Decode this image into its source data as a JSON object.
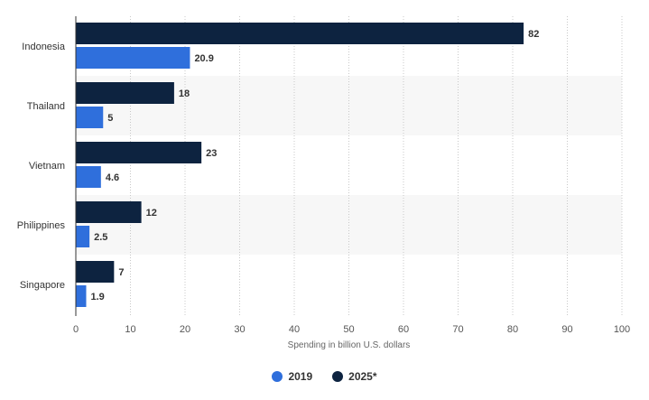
{
  "chart_data": {
    "type": "bar",
    "orientation": "horizontal",
    "categories": [
      "Indonesia",
      "Thailand",
      "Vietnam",
      "Philippines",
      "Singapore"
    ],
    "series": [
      {
        "name": "2025*",
        "color": "#0d2340",
        "values": [
          82,
          18,
          23,
          12,
          7
        ]
      },
      {
        "name": "2019",
        "color": "#2f6fdc",
        "values": [
          20.9,
          5,
          4.6,
          2.5,
          1.9
        ]
      }
    ],
    "xlabel": "Spending in billion U.S. dollars",
    "xlim": [
      0,
      100
    ],
    "xticks": [
      0,
      10,
      20,
      30,
      40,
      50,
      60,
      70,
      80,
      90,
      100
    ],
    "grid": true,
    "legend_position": "bottom-center",
    "legend_order": [
      "2019",
      "2025*"
    ]
  }
}
